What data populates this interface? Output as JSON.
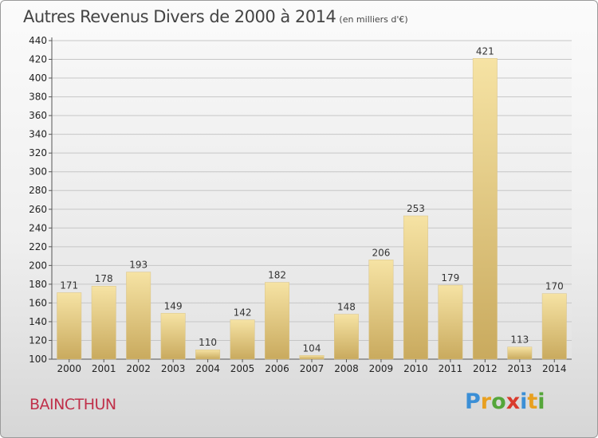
{
  "title": "Autres Revenus Divers de 2000 à 2014",
  "subtitle": "(en milliers d'€)",
  "place": "BAINCTHUN",
  "logo": {
    "text": "Proxiti",
    "letters": [
      {
        "char": "P",
        "color": "#3b8fd6"
      },
      {
        "char": "r",
        "color": "#e8a020"
      },
      {
        "char": "o",
        "color": "#55a63a"
      },
      {
        "char": "x",
        "color": "#d93a2c"
      },
      {
        "char": "i",
        "color": "#3b8fd6"
      },
      {
        "char": "t",
        "color": "#e8a020"
      },
      {
        "char": "i",
        "color": "#55a63a"
      }
    ]
  },
  "chart_data": {
    "type": "bar",
    "title": "Autres Revenus Divers de 2000 à 2014",
    "subtitle": "(en milliers d'€)",
    "categories": [
      "2000",
      "2001",
      "2002",
      "2003",
      "2004",
      "2005",
      "2006",
      "2007",
      "2008",
      "2009",
      "2010",
      "2011",
      "2012",
      "2013",
      "2014"
    ],
    "values": [
      171,
      178,
      193,
      149,
      110,
      142,
      182,
      104,
      148,
      206,
      253,
      179,
      421,
      113,
      170
    ],
    "ylim": [
      100,
      440
    ],
    "yticks": [
      100,
      120,
      140,
      160,
      180,
      200,
      220,
      240,
      260,
      280,
      300,
      320,
      340,
      360,
      380,
      400,
      420,
      440
    ],
    "grid": true,
    "bar_color_light": "#f6e3a4",
    "bar_color_dark": "#c9aa5e"
  }
}
